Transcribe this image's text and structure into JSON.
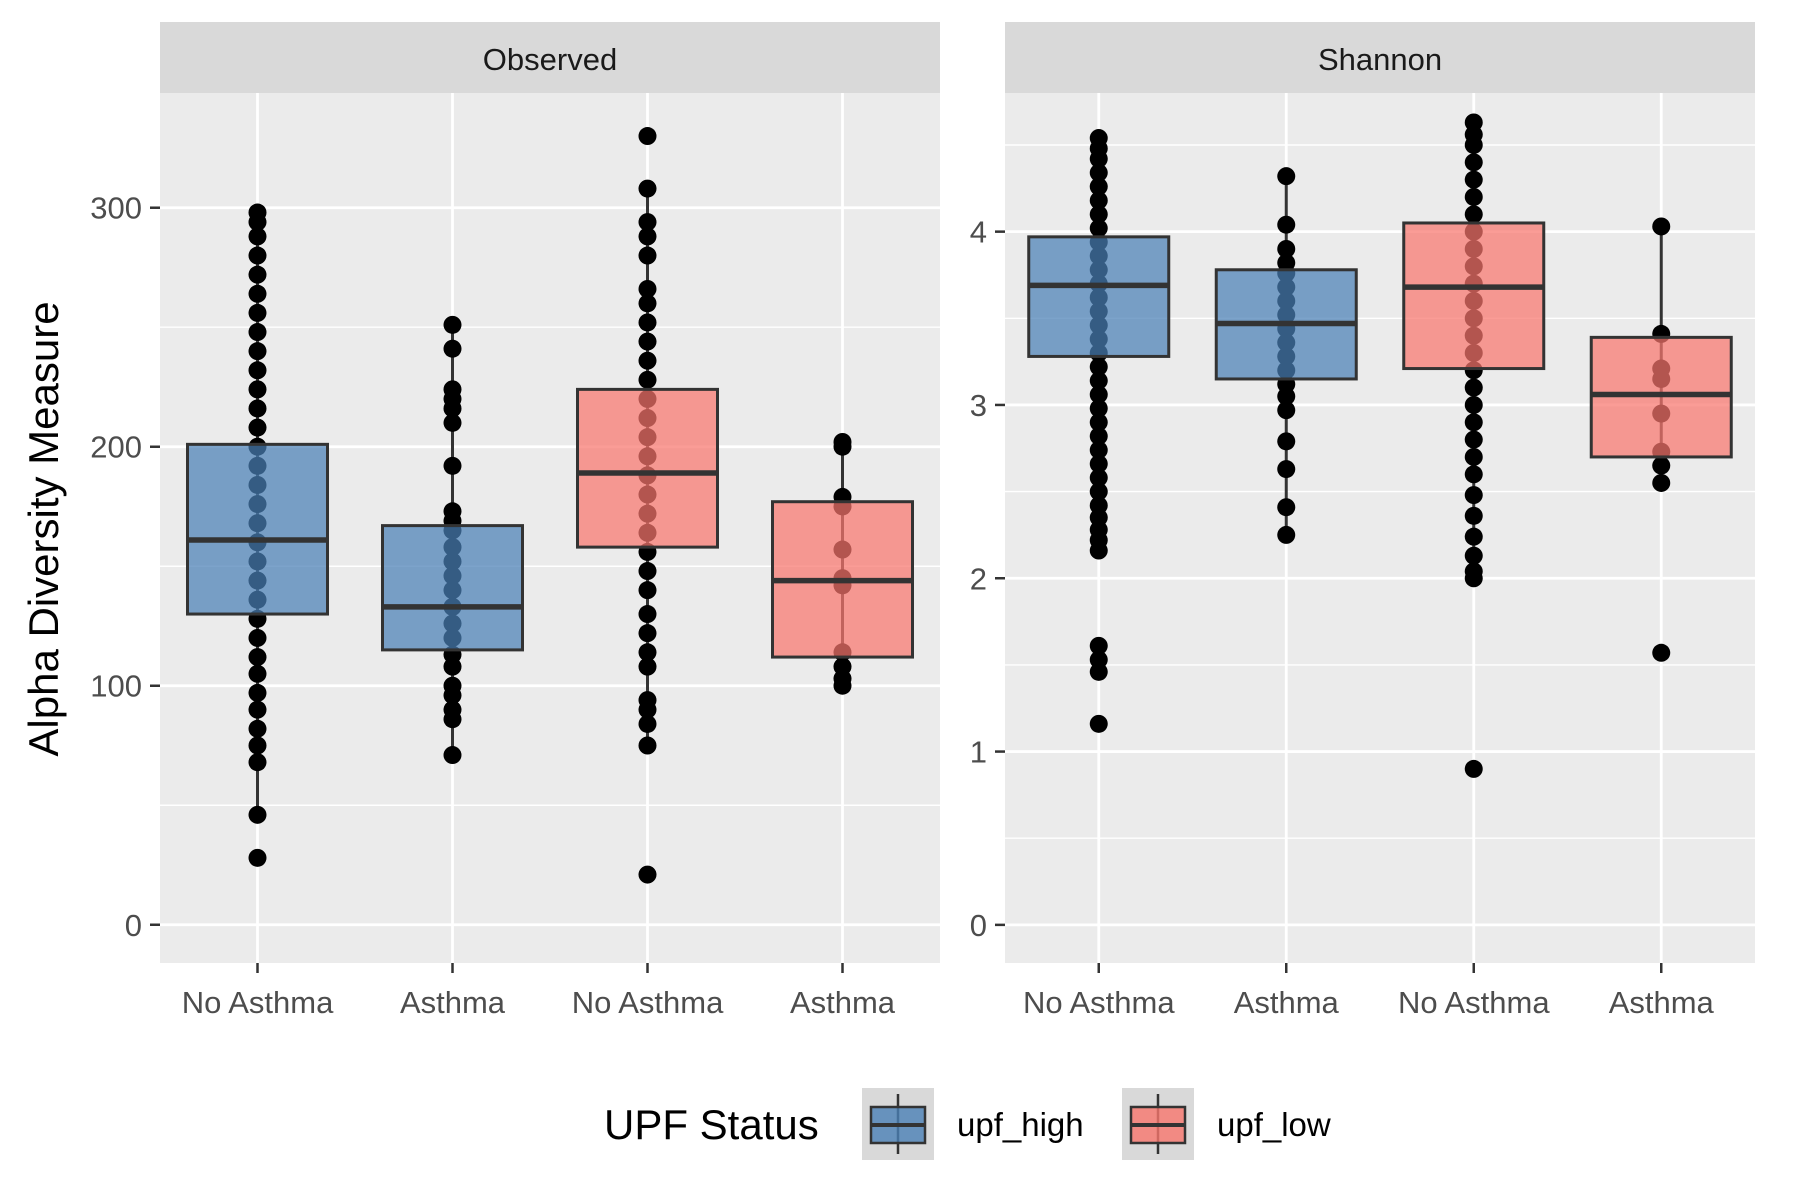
{
  "chart_data": {
    "type": "box",
    "ylabel": "Alpha Diversity Measure",
    "legend": {
      "title": "UPF Status",
      "placement": "bottom",
      "entries": [
        {
          "name": "upf_high",
          "color": "#4a80b5"
        },
        {
          "name": "upf_low",
          "color": "#f8766d"
        }
      ]
    },
    "colors": {
      "panel_bg": "#ebebeb",
      "strip_bg": "#d9d9d9",
      "box_edge": "#333333",
      "point": "#000000"
    },
    "panels": [
      {
        "title": "Observed",
        "ylim": [
          -16,
          348
        ],
        "yticks": [
          0,
          100,
          200,
          300
        ],
        "categories": [
          "No Asthma",
          "Asthma",
          "No Asthma",
          "Asthma"
        ],
        "groups": [
          {
            "category": "No Asthma",
            "series": "upf_high",
            "q1": 130,
            "median": 161,
            "q3": 201,
            "whisker_low": 46,
            "whisker_high": 298,
            "points": [
              28,
              46,
              68,
              75,
              82,
              90,
              97,
              105,
              112,
              120,
              128,
              136,
              144,
              152,
              160,
              168,
              176,
              184,
              192,
              200,
              208,
              216,
              224,
              232,
              240,
              248,
              256,
              264,
              272,
              280,
              288,
              294,
              298
            ]
          },
          {
            "category": "Asthma",
            "series": "upf_high",
            "q1": 115,
            "median": 133,
            "q3": 167,
            "whisker_low": 71,
            "whisker_high": 251,
            "points": [
              71,
              86,
              90,
              96,
              100,
              108,
              113,
              120,
              126,
              133,
              140,
              146,
              152,
              158,
              165,
              169,
              173,
              192,
              210,
              216,
              220,
              224,
              241,
              251
            ]
          },
          {
            "category": "No Asthma",
            "series": "upf_low",
            "q1": 158,
            "median": 189,
            "q3": 224,
            "whisker_low": 75,
            "whisker_high": 308,
            "points": [
              21,
              75,
              84,
              90,
              94,
              108,
              114,
              122,
              130,
              140,
              148,
              156,
              164,
              172,
              180,
              188,
              196,
              204,
              212,
              220,
              228,
              236,
              244,
              252,
              260,
              266,
              280,
              288,
              294,
              308,
              330
            ]
          },
          {
            "category": "Asthma",
            "series": "upf_low",
            "q1": 112,
            "median": 144,
            "q3": 177,
            "whisker_low": 100,
            "whisker_high": 202,
            "points": [
              100,
              103,
              108,
              114,
              142,
              145,
              157,
              175,
              179,
              200,
              202
            ]
          }
        ]
      },
      {
        "title": "Shannon",
        "ylim": [
          -0.22,
          4.8
        ],
        "yticks": [
          0,
          1,
          2,
          3,
          4
        ],
        "categories": [
          "No Asthma",
          "Asthma",
          "No Asthma",
          "Asthma"
        ],
        "groups": [
          {
            "category": "No Asthma",
            "series": "upf_high",
            "q1": 3.28,
            "median": 3.69,
            "q3": 3.97,
            "whisker_low": 2.16,
            "whisker_high": 4.54,
            "points": [
              1.16,
              1.46,
              1.53,
              1.61,
              2.16,
              2.22,
              2.28,
              2.35,
              2.42,
              2.5,
              2.58,
              2.66,
              2.74,
              2.82,
              2.9,
              2.98,
              3.06,
              3.14,
              3.22,
              3.3,
              3.38,
              3.46,
              3.54,
              3.62,
              3.7,
              3.78,
              3.86,
              3.94,
              4.02,
              4.1,
              4.18,
              4.26,
              4.34,
              4.42,
              4.48,
              4.54
            ]
          },
          {
            "category": "Asthma",
            "series": "upf_high",
            "q1": 3.15,
            "median": 3.47,
            "q3": 3.78,
            "whisker_low": 2.25,
            "whisker_high": 4.32,
            "points": [
              2.25,
              2.41,
              2.63,
              2.79,
              2.97,
              3.05,
              3.12,
              3.2,
              3.28,
              3.36,
              3.44,
              3.52,
              3.6,
              3.68,
              3.76,
              3.82,
              3.9,
              4.04,
              4.32
            ]
          },
          {
            "category": "No Asthma",
            "series": "upf_low",
            "q1": 3.21,
            "median": 3.68,
            "q3": 4.05,
            "whisker_low": 2.0,
            "whisker_high": 4.63,
            "points": [
              0.9,
              2.0,
              2.04,
              2.13,
              2.24,
              2.36,
              2.48,
              2.6,
              2.7,
              2.8,
              2.9,
              3.0,
              3.1,
              3.2,
              3.3,
              3.4,
              3.5,
              3.6,
              3.7,
              3.8,
              3.9,
              4.0,
              4.1,
              4.2,
              4.3,
              4.4,
              4.5,
              4.56,
              4.63
            ]
          },
          {
            "category": "Asthma",
            "series": "upf_low",
            "q1": 2.7,
            "median": 3.06,
            "q3": 3.39,
            "whisker_low": 2.55,
            "whisker_high": 4.03,
            "points": [
              1.57,
              2.55,
              2.65,
              2.73,
              2.95,
              3.15,
              3.21,
              3.41,
              4.03
            ]
          }
        ]
      }
    ]
  }
}
